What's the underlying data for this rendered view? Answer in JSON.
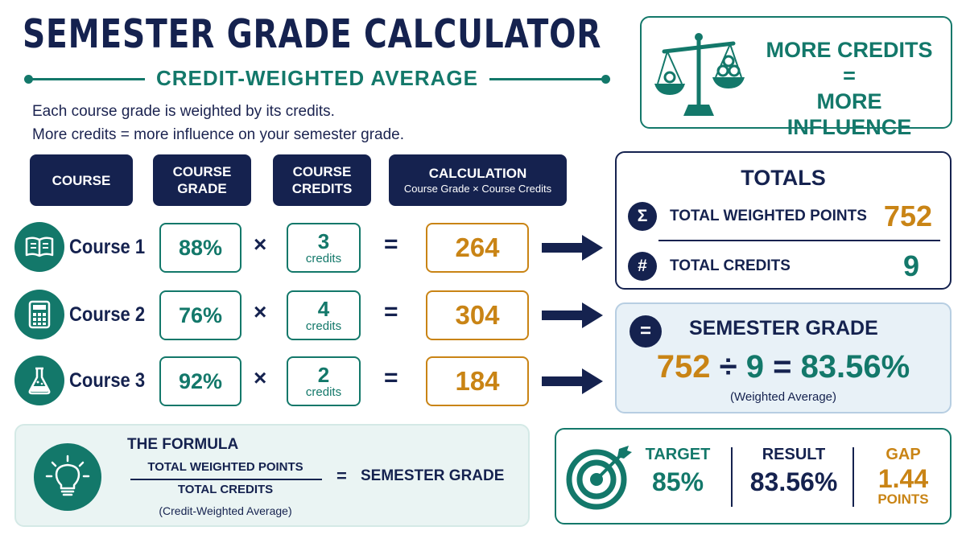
{
  "title": "SEMESTER GRADE CALCULATOR",
  "subtitle": "CREDIT-WEIGHTED AVERAGE",
  "intro": {
    "line1": "Each course grade is weighted by its credits.",
    "line2": "More credits = more influence on your semester grade."
  },
  "headers": {
    "course": "COURSE",
    "grade_line1": "COURSE",
    "grade_line2": "GRADE",
    "credits_line1": "COURSE",
    "credits_line2": "CREDITS",
    "calc": "CALCULATION",
    "calc_sub": "Course Grade × Course Credits"
  },
  "operators": {
    "times": "×",
    "equals": "="
  },
  "courses": [
    {
      "name": "Course 1",
      "icon": "book-icon",
      "grade": "88%",
      "credits": "3",
      "credits_unit": "credits",
      "weighted": "264"
    },
    {
      "name": "Course 2",
      "icon": "calculator-icon",
      "grade": "76%",
      "credits": "4",
      "credits_unit": "credits",
      "weighted": "304"
    },
    {
      "name": "Course 3",
      "icon": "flask-icon",
      "grade": "92%",
      "credits": "2",
      "credits_unit": "credits",
      "weighted": "184"
    }
  ],
  "formula": {
    "title": "THE FORMULA",
    "numerator": "TOTAL WEIGHTED POINTS",
    "denominator": "TOTAL CREDITS",
    "note": "(Credit-Weighted Average)",
    "equals": "=",
    "result": "SEMESTER GRADE",
    "icon": "lightbulb-icon"
  },
  "influence": {
    "line1": "MORE CREDITS",
    "line2": "=",
    "line3": "MORE INFLUENCE",
    "icon": "balance-scale-icon"
  },
  "totals": {
    "title": "TOTALS",
    "points_symbol": "Σ",
    "points_label": "TOTAL WEIGHTED POINTS",
    "points_value": "752",
    "credits_symbol": "#",
    "credits_label": "TOTAL CREDITS",
    "credits_value": "9"
  },
  "semester": {
    "symbol": "=",
    "title": "SEMESTER GRADE",
    "points": "752",
    "divide": "÷",
    "credits": "9",
    "equals": "=",
    "result": "83.56%",
    "note": "(Weighted Average)"
  },
  "target": {
    "icon": "target-icon",
    "target_label": "TARGET",
    "target_value": "85%",
    "result_label": "RESULT",
    "result_value": "83.56%",
    "gap_label": "GAP",
    "gap_value": "1.44",
    "gap_unit": "POINTS"
  },
  "colors": {
    "navy": "#15224f",
    "teal": "#13786a",
    "orange": "#c98415",
    "light_teal_bg": "#eaf4f3",
    "light_blue_bg": "#e8f1f7"
  }
}
